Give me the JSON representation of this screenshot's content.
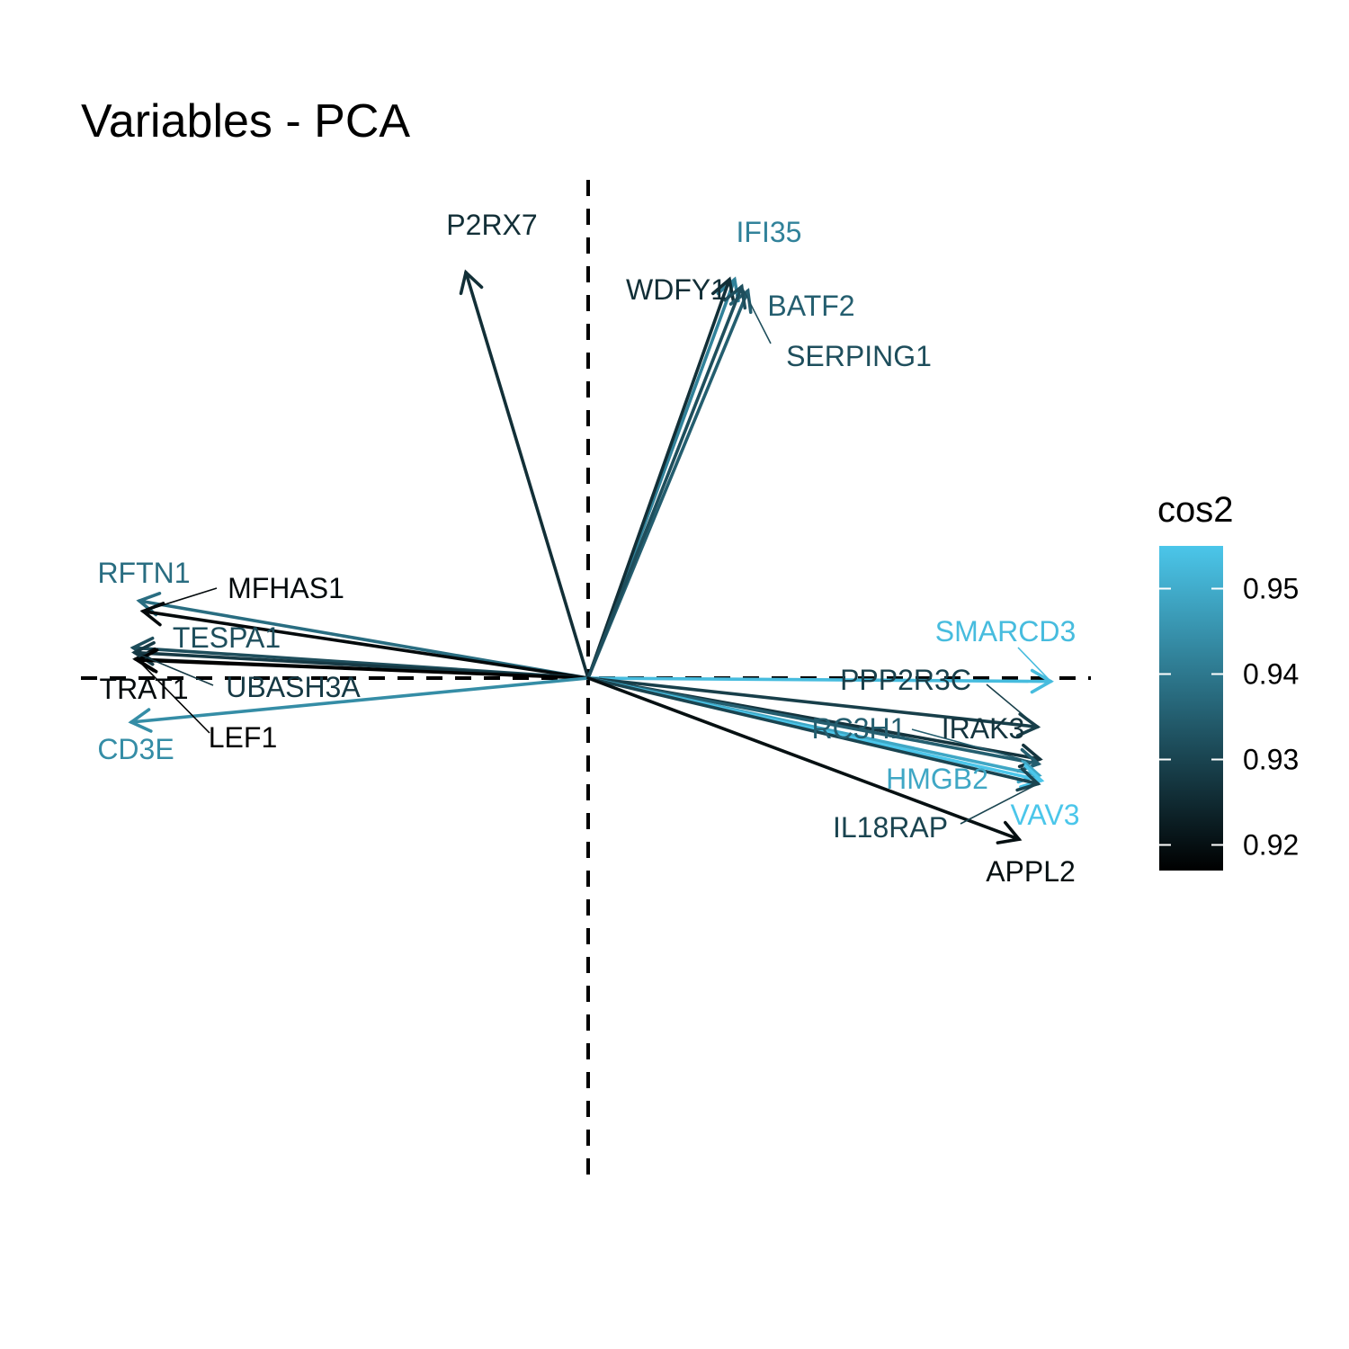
{
  "chart_data": {
    "type": "pca-variables",
    "title": "Variables - PCA",
    "xlabel": "",
    "ylabel": "",
    "xlim": [
      -1.02,
      1.02
    ],
    "ylim": [
      -1.02,
      1.02
    ],
    "grid": false,
    "reference_lines": {
      "x": 0,
      "y": 0,
      "style": "dashed"
    },
    "colors": {
      "low": "#000000",
      "high": "#4bc6ea"
    },
    "legend": {
      "title": "cos2",
      "position": "right",
      "range": [
        0.917,
        0.955
      ],
      "ticks": [
        "0.92",
        "0.93",
        "0.94",
        "0.95"
      ]
    },
    "variables": [
      {
        "name": "P2RX7",
        "x": -0.258,
        "y": 0.856,
        "cos2": 0.926
      },
      {
        "name": "IFI35",
        "x": 0.309,
        "y": 0.841,
        "cos2": 0.942
      },
      {
        "name": "WDFY1",
        "x": 0.298,
        "y": 0.841,
        "cos2": 0.926
      },
      {
        "name": "BATF2",
        "x": 0.337,
        "y": 0.817,
        "cos2": 0.935
      },
      {
        "name": "SERPING1",
        "x": 0.324,
        "y": 0.826,
        "cos2": 0.932
      },
      {
        "name": "RFTN1",
        "x": -0.947,
        "y": 0.163,
        "cos2": 0.938
      },
      {
        "name": "MFHAS1",
        "x": -0.939,
        "y": 0.141,
        "cos2": 0.919
      },
      {
        "name": "TESPA1",
        "x": -0.96,
        "y": 0.064,
        "cos2": 0.932
      },
      {
        "name": "TRAT1",
        "x": -0.955,
        "y": 0.04,
        "cos2": 0.919
      },
      {
        "name": "UBASH3A",
        "x": -0.957,
        "y": 0.054,
        "cos2": 0.928
      },
      {
        "name": "LEF1",
        "x": -0.95,
        "y": 0.038,
        "cos2": 0.917
      },
      {
        "name": "CD3E",
        "x": -0.964,
        "y": -0.093,
        "cos2": 0.944
      },
      {
        "name": "SMARCD3",
        "x": 0.976,
        "y": -0.007,
        "cos2": 0.953
      },
      {
        "name": "PPP2R3C",
        "x": 0.948,
        "y": -0.103,
        "cos2": 0.929
      },
      {
        "name": "IRAK3",
        "x": 0.953,
        "y": -0.171,
        "cos2": 0.927
      },
      {
        "name": "RC3H1",
        "x": 0.95,
        "y": -0.181,
        "cos2": 0.935
      },
      {
        "name": "HMGB2",
        "x": 0.951,
        "y": -0.205,
        "cos2": 0.949
      },
      {
        "name": "VAV3",
        "x": 0.956,
        "y": -0.216,
        "cos2": 0.955
      },
      {
        "name": "IL18RAP",
        "x": 0.949,
        "y": -0.223,
        "cos2": 0.93
      },
      {
        "name": "APPL2",
        "x": 0.909,
        "y": -0.34,
        "cos2": 0.92
      }
    ]
  }
}
